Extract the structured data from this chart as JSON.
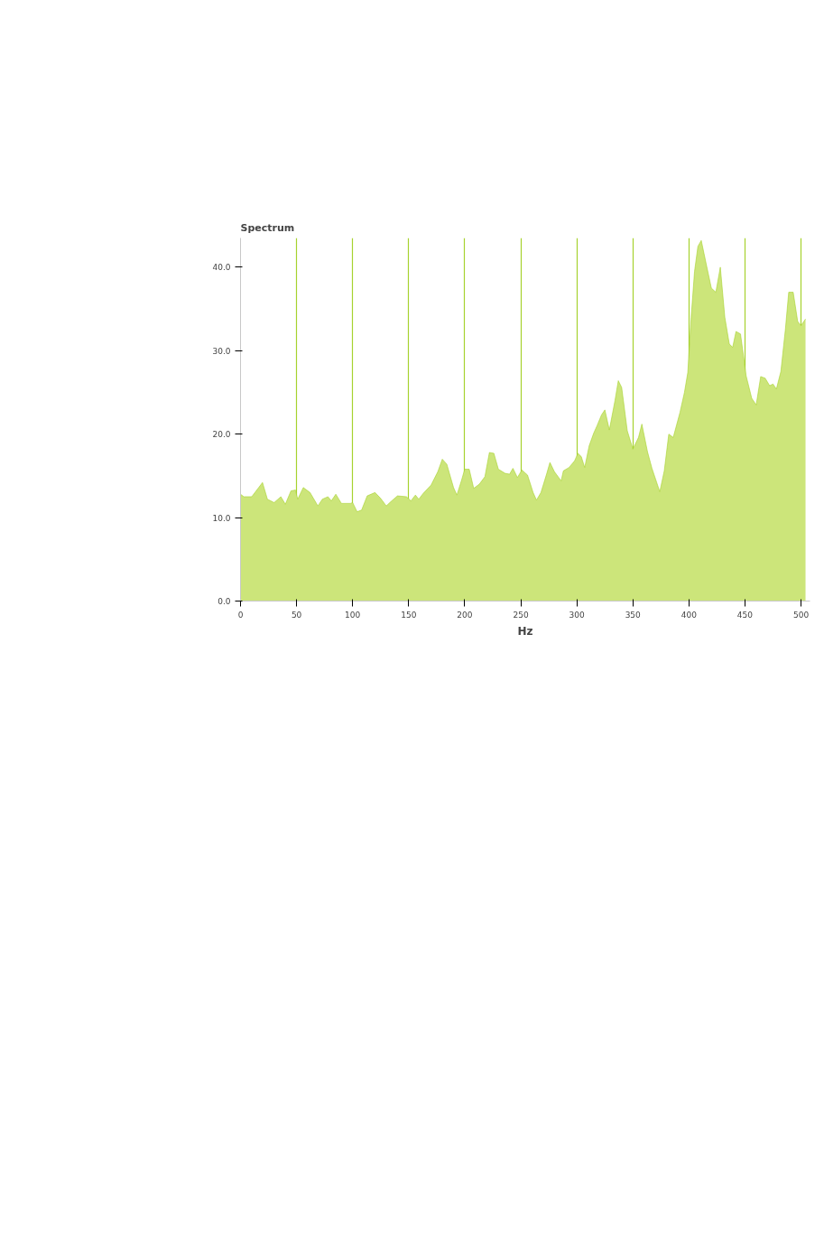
{
  "chart_data": {
    "type": "area",
    "title": "Spectrum",
    "xlabel": "Hz",
    "x": [
      0,
      3,
      10,
      19.6,
      24,
      30,
      36,
      40,
      45,
      49,
      51,
      56,
      62,
      69,
      73,
      78,
      81,
      85,
      90,
      98,
      100,
      104,
      108,
      113,
      120,
      125,
      130,
      134,
      140,
      148,
      152,
      156,
      159,
      163,
      170,
      176,
      180,
      184,
      190,
      193,
      197,
      200,
      204,
      208,
      213,
      218,
      222,
      226,
      230,
      236,
      240,
      243,
      247,
      251,
      256,
      261,
      264,
      268,
      273,
      276,
      280,
      286,
      288,
      293,
      298,
      301,
      304,
      307,
      311,
      315,
      318,
      322,
      325,
      329,
      334,
      337,
      340,
      345,
      350,
      355,
      358,
      363,
      367,
      374,
      378,
      382,
      386,
      392,
      396,
      399,
      402,
      405,
      408,
      411,
      416,
      420,
      424,
      428,
      432,
      436,
      439,
      442,
      446,
      451,
      456,
      460,
      464,
      468,
      472,
      475,
      478,
      482,
      486,
      489,
      493,
      497,
      500,
      504
    ],
    "series": [
      {
        "color": "#cce57a",
        "values": [
          12.8,
          12.5,
          12.5,
          14.2,
          12.2,
          11.8,
          12.5,
          11.6,
          13.2,
          13.3,
          12.2,
          13.6,
          13.0,
          11.4,
          12.2,
          12.5,
          12.0,
          12.8,
          11.7,
          11.7,
          11.8,
          10.7,
          10.9,
          12.6,
          13.0,
          12.3,
          11.4,
          11.9,
          12.6,
          12.5,
          12.0,
          12.7,
          12.2,
          12.9,
          13.9,
          15.5,
          17.0,
          16.4,
          13.6,
          12.7,
          14.4,
          15.8,
          15.8,
          13.5,
          14.0,
          14.9,
          17.8,
          17.7,
          15.8,
          15.3,
          15.2,
          15.9,
          14.8,
          15.7,
          15.1,
          13.0,
          12.1,
          13.0,
          15.2,
          16.6,
          15.5,
          14.4,
          15.6,
          16.0,
          16.8,
          17.7,
          17.3,
          16.0,
          18.6,
          20.1,
          21.0,
          22.3,
          22.9,
          20.5,
          24.0,
          26.4,
          25.6,
          20.4,
          18.2,
          19.6,
          21.2,
          17.9,
          15.9,
          13.1,
          15.6,
          20.0,
          19.6,
          22.6,
          25.0,
          27.4,
          34.0,
          39.5,
          42.5,
          43.2,
          40.0,
          37.5,
          37.0,
          40.0,
          34.0,
          30.8,
          30.4,
          32.3,
          32.0,
          27.0,
          24.3,
          23.5,
          26.9,
          26.7,
          25.8,
          26.0,
          25.4,
          27.5,
          32.5,
          37.0,
          37.0,
          33.5,
          33.0,
          33.8
        ]
      }
    ],
    "xlim": [
      0,
      508
    ],
    "xticks": [
      0,
      50,
      100,
      150,
      200,
      250,
      300,
      350,
      400,
      450,
      500
    ],
    "ylim": [
      0,
      43.5
    ],
    "yticks": [
      {
        "value": 0,
        "label": "0.0"
      },
      {
        "value": 10,
        "label": "10.0"
      },
      {
        "value": 20,
        "label": "20.0"
      },
      {
        "value": 30,
        "label": "30.0"
      },
      {
        "value": 40,
        "label": "40.0"
      }
    ],
    "grid": "x"
  }
}
